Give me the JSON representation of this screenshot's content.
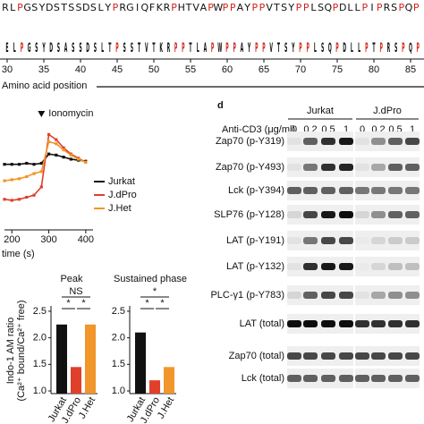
{
  "sequence_panel": {
    "sequence": "RLPGSYDSTSSDSLYPRGIQFKRPHTVAPWPPAYPPVTSYPPLSQPDLLPIPRSPQP",
    "logo": "ELPGSYDSASSDSLTPSSTVTKRPPTLAPWPPAYPPVTSYPPLSQPDLLPTPRSPQP",
    "xticks": [
      30,
      35,
      40,
      45,
      50,
      55,
      60,
      65,
      70,
      75,
      80,
      85
    ],
    "xlabel": "Amino acid position"
  },
  "chart_data": [
    {
      "type": "line",
      "annotation": "Ionomycin",
      "annotation_x": 280,
      "xlabel": "time (s)",
      "x": [
        180,
        200,
        220,
        240,
        260,
        280,
        300,
        320,
        340,
        360,
        380,
        400
      ],
      "xlim": [
        180,
        410
      ],
      "xticks": [
        200,
        300,
        400
      ],
      "ylim": [
        0,
        1
      ],
      "legend": "right",
      "series": [
        {
          "name": "Jurkat",
          "color": "#111111",
          "values": [
            0.62,
            0.62,
            0.62,
            0.63,
            0.62,
            0.63,
            0.72,
            0.71,
            0.69,
            0.67,
            0.66,
            0.65
          ]
        },
        {
          "name": "J.dPro",
          "color": "#e0402a",
          "values": [
            0.28,
            0.27,
            0.28,
            0.3,
            0.32,
            0.4,
            0.91,
            0.86,
            0.78,
            0.72,
            0.68,
            0.64
          ]
        },
        {
          "name": "J.Het",
          "color": "#f0962a",
          "values": [
            0.46,
            0.47,
            0.48,
            0.5,
            0.53,
            0.55,
            0.84,
            0.82,
            0.76,
            0.71,
            0.67,
            0.64
          ]
        }
      ]
    },
    {
      "type": "bar",
      "title": "Peak",
      "ylabel": [
        "Indo-1 AM ratio",
        "(Ca²⁺ bound/Ca²⁺ free)"
      ],
      "categories": [
        "Jurkat",
        "J.dPro",
        "J.Het"
      ],
      "values": [
        2.25,
        1.45,
        2.25
      ],
      "colors": [
        "#111111",
        "#e0402a",
        "#f0962a"
      ],
      "ylim": [
        0.95,
        2.6
      ],
      "yticks": [
        {
          "value": 1,
          "label": "1.0"
        },
        1.5,
        {
          "value": 2,
          "label": "2.0"
        },
        2.5
      ],
      "significance": [
        "NS",
        "*",
        "*"
      ]
    },
    {
      "type": "bar",
      "title": "Sustained phase",
      "categories": [
        "Jurkat",
        "J.dPro",
        "J.Het"
      ],
      "values": [
        2.1,
        1.2,
        1.45
      ],
      "colors": [
        "#111111",
        "#e0402a",
        "#f0962a"
      ],
      "ylim": [
        0.95,
        2.6
      ],
      "yticks": [
        {
          "value": 1,
          "label": "1.0"
        },
        1.5,
        {
          "value": 2,
          "label": "2.0"
        },
        2.5
      ],
      "significance": [
        "*",
        "*",
        "*"
      ]
    }
  ],
  "blot_panel": {
    "label": "d",
    "dose_label": "Anti-CD3 (μg/ml)",
    "groups": [
      {
        "name": "Jurkat",
        "doses": [
          0,
          0.2,
          0.5,
          1
        ]
      },
      {
        "name": "J.dPro",
        "doses": [
          0,
          0.2,
          0.5,
          1
        ]
      }
    ],
    "rows": [
      {
        "label": "Zap70 (p-Y319)",
        "intensity": [
          0.05,
          0.6,
          0.8,
          0.9,
          0.05,
          0.4,
          0.6,
          0.7
        ]
      },
      {
        "label": "Zap70 (p-Y493)",
        "intensity": [
          0.05,
          0.5,
          0.8,
          0.85,
          0.05,
          0.3,
          0.6,
          0.6
        ]
      },
      {
        "label": "Lck (p-Y394)",
        "intensity": [
          0.6,
          0.6,
          0.6,
          0.6,
          0.5,
          0.5,
          0.5,
          0.5
        ]
      },
      {
        "label": "SLP76 (p-Y128)",
        "intensity": [
          0.1,
          0.7,
          0.9,
          0.95,
          0.1,
          0.4,
          0.6,
          0.6
        ]
      },
      {
        "label": "LAT (p-Y191)",
        "intensity": [
          0.05,
          0.5,
          0.7,
          0.7,
          0.02,
          0.1,
          0.15,
          0.15
        ]
      },
      {
        "label": "LAT (p-Y132)",
        "intensity": [
          0.05,
          0.8,
          0.9,
          0.9,
          0.02,
          0.1,
          0.2,
          0.2
        ]
      },
      {
        "label": "PLC-γ1 (p-Y783)",
        "intensity": [
          0.1,
          0.6,
          0.7,
          0.7,
          0.05,
          0.3,
          0.4,
          0.4
        ]
      },
      {
        "label": "LAT (total)",
        "intensity": [
          0.95,
          0.95,
          0.95,
          0.95,
          0.8,
          0.8,
          0.8,
          0.8
        ]
      },
      {
        "label": "Zap70 (total)",
        "intensity": [
          0.7,
          0.7,
          0.7,
          0.7,
          0.7,
          0.7,
          0.7,
          0.7
        ]
      },
      {
        "label": "Lck (total)",
        "intensity": [
          0.6,
          0.6,
          0.6,
          0.6,
          0.6,
          0.6,
          0.6,
          0.6
        ]
      }
    ]
  }
}
